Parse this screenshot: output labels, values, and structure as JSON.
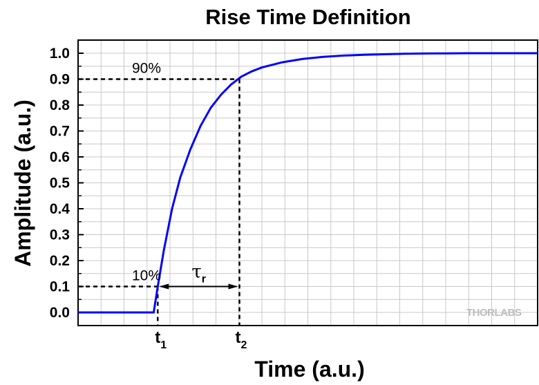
{
  "chart_data": {
    "type": "line",
    "title": "Rise Time Definition",
    "xlabel": "Time (a.u.)",
    "ylabel": "Amplitude (a.u.)",
    "ylim": [
      0,
      1.0
    ],
    "y_ticks": [
      "0.0",
      "0.1",
      "0.2",
      "0.3",
      "0.4",
      "0.5",
      "0.6",
      "0.7",
      "0.8",
      "0.9",
      "1.0"
    ],
    "grid": true,
    "series": [
      {
        "color": "#0000ff",
        "x": [
          0,
          3.7,
          3.9,
          4.2,
          4.6,
          5.0,
          5.5,
          6.0,
          6.5,
          7.0,
          7.5,
          8.0,
          8.5,
          9.0,
          10.0,
          11.0,
          12.0,
          13.0,
          14.0,
          15.0,
          16.0,
          17.0,
          18.0,
          19.0,
          20.0,
          21.0,
          22.0,
          22.5
        ],
        "y": [
          0,
          0,
          0.1,
          0.24,
          0.4,
          0.52,
          0.63,
          0.72,
          0.79,
          0.84,
          0.88,
          0.91,
          0.93,
          0.945,
          0.965,
          0.978,
          0.986,
          0.991,
          0.994,
          0.996,
          0.998,
          0.999,
          0.9995,
          1.0,
          1.0,
          1.0,
          1.0,
          1.0
        ]
      }
    ],
    "markers": {
      "t1": {
        "label": "t",
        "sub": "1",
        "x": 3.9,
        "level_label": "10%",
        "level": 0.1
      },
      "t2": {
        "label": "t",
        "sub": "2",
        "x": 7.9,
        "level_label": "90%",
        "level": 0.9
      }
    },
    "rise_time_label": {
      "symbol": "τ",
      "sub": "r"
    },
    "xlim": [
      0,
      22.5
    ]
  },
  "brand": {
    "part1": "THOR",
    "part2": "LABS"
  },
  "colors": {
    "curve": "#0000ff",
    "grid": "#c8c8c8",
    "axis": "#000000"
  }
}
